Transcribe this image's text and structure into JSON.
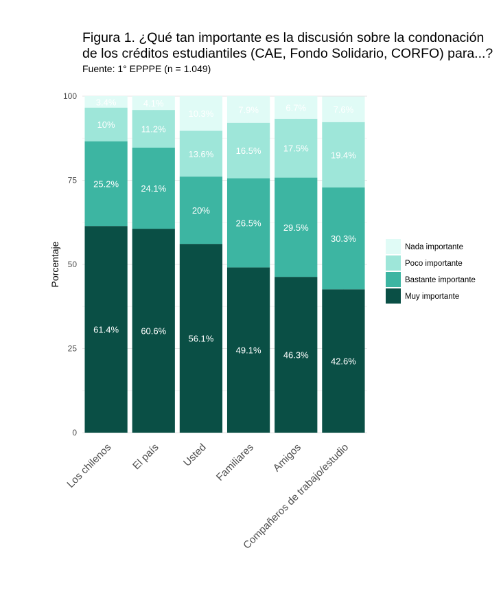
{
  "chart_data": {
    "type": "bar",
    "stacked": true,
    "title_lines": [
      "Figura 1. ¿Qué tan importante es la discusión sobre la condonación",
      "de los créditos estudiantiles (CAE, Fondo Solidario, CORFO) para...?"
    ],
    "subtitle": "Fuente: 1° EPPPE (n = 1.049)",
    "xlabel": "",
    "ylabel": "Porcentaje",
    "ylim": [
      0,
      100
    ],
    "yticks": [
      0,
      25,
      50,
      75,
      100
    ],
    "grid": true,
    "legend_position": "right",
    "categories": [
      "Los chilenos",
      "El país",
      "Usted",
      "Familiares",
      "Amigos",
      "Compañeros de trabajo/estudio"
    ],
    "series": [
      {
        "name": "Muy importante",
        "color": "#0a4f45",
        "values": [
          61.4,
          60.6,
          56.1,
          49.1,
          46.3,
          42.6
        ],
        "labels": [
          "61.4%",
          "60.6%",
          "56.1%",
          "49.1%",
          "46.3%",
          "42.6%"
        ]
      },
      {
        "name": "Bastante importante",
        "color": "#3db5a2",
        "values": [
          25.2,
          24.1,
          20.0,
          26.5,
          29.5,
          30.3
        ],
        "labels": [
          "25.2%",
          "24.1%",
          "20%",
          "26.5%",
          "29.5%",
          "30.3%"
        ]
      },
      {
        "name": "Poco importante",
        "color": "#9ee6d9",
        "values": [
          10.0,
          11.2,
          13.6,
          16.5,
          17.5,
          19.4
        ],
        "labels": [
          "10%",
          "11.2%",
          "13.6%",
          "16.5%",
          "17.5%",
          "19.4%"
        ]
      },
      {
        "name": "Nada importante",
        "color": "#e0fbf6",
        "values": [
          3.4,
          4.1,
          10.3,
          7.9,
          6.7,
          7.6
        ],
        "labels": [
          "3.4%",
          "4.1%",
          "10.3%",
          "7.9%",
          "6.7%",
          "7.6%"
        ]
      }
    ],
    "legend_order": [
      "Nada importante",
      "Poco importante",
      "Bastante importante",
      "Muy importante"
    ]
  }
}
